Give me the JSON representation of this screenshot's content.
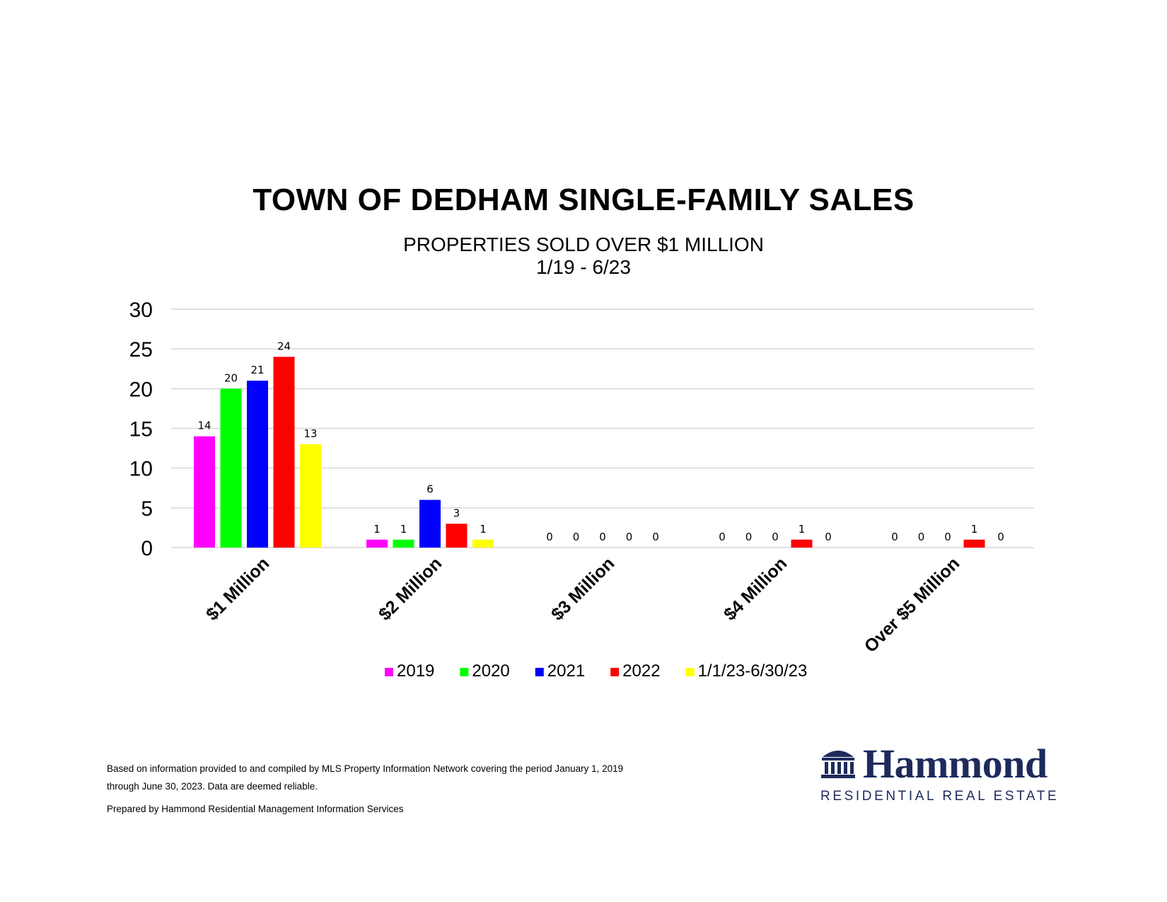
{
  "chart_data": {
    "type": "bar",
    "title": "TOWN OF DEDHAM SINGLE-FAMILY SALES",
    "subtitle_lines": [
      "PROPERTIES SOLD OVER $1 MILLION",
      "1/19 - 6/23"
    ],
    "categories": [
      "$1 Million",
      "$2 Million",
      "$3 Million",
      "$4 Million",
      "Over $5 Million"
    ],
    "series": [
      {
        "name": "2019",
        "color": "#ff00ff",
        "values": [
          14,
          1,
          0,
          0,
          0
        ]
      },
      {
        "name": "2020",
        "color": "#00ff00",
        "values": [
          20,
          1,
          0,
          0,
          0
        ]
      },
      {
        "name": "2021",
        "color": "#0000ff",
        "values": [
          21,
          6,
          0,
          0,
          0
        ]
      },
      {
        "name": "2022",
        "color": "#ff0000",
        "values": [
          24,
          3,
          0,
          1,
          1
        ]
      },
      {
        "name": "1/1/23-6/30/23",
        "color": "#ffff00",
        "values": [
          13,
          1,
          0,
          0,
          0
        ]
      }
    ],
    "yticks": [
      0,
      5,
      10,
      15,
      20,
      25,
      30
    ],
    "ylim": [
      0,
      30
    ],
    "grid": true,
    "legend_position": "bottom",
    "data_labels": true
  },
  "footnote": {
    "line1": "Based on information provided to and compiled by MLS Property Information Network covering the period January 1, 2019",
    "line2": "through June 30, 2023. Data are deemed reliable.",
    "line3": "Prepared by Hammond Residential Management Information Services"
  },
  "logo": {
    "name": "Hammond",
    "tagline": "RESIDENTIAL REAL ESTATE",
    "icon": "building-columns-icon",
    "color": "#1f2a5c"
  }
}
